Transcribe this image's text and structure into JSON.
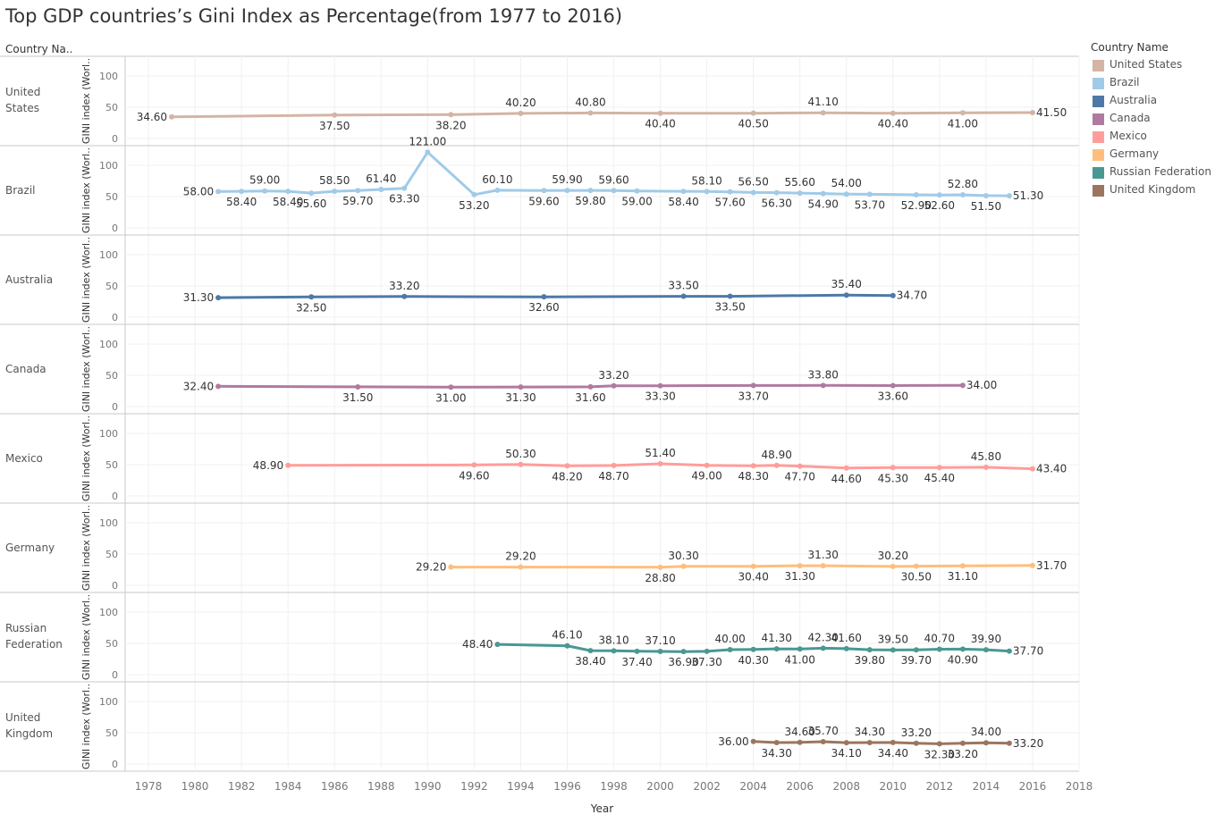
{
  "title": "Top GDP countries’s Gini Index as Percentage(from 1977 to 2016)",
  "chart_data": {
    "type": "line",
    "title": "Top GDP countries’s Gini Index as Percentage(from 1977 to 2016)",
    "row_header": "Country Na..",
    "xlabel": "Year",
    "ylabel": "GINI index (Worl..",
    "xlim": [
      1977,
      2018
    ],
    "x_ticks": [
      1978,
      1980,
      1982,
      1984,
      1986,
      1988,
      1990,
      1992,
      1994,
      1996,
      1998,
      2000,
      2002,
      2004,
      2006,
      2008,
      2010,
      2012,
      2014,
      2016,
      2018
    ],
    "ylim": [
      0,
      120
    ],
    "y_ticks": [
      0,
      50,
      100
    ],
    "grid": true,
    "legend": {
      "title": "Country Name",
      "placement": "right"
    },
    "series": [
      {
        "name": "United States",
        "panel_label": "United States",
        "color": "#d4b4a4",
        "x": [
          1979,
          1986,
          1991,
          1994,
          1997,
          2000,
          2004,
          2007,
          2010,
          2013,
          2016
        ],
        "values": [
          34.6,
          37.5,
          38.2,
          40.2,
          40.8,
          40.4,
          40.5,
          41.1,
          40.4,
          41.0,
          41.5
        ],
        "label_pos": [
          "left",
          "below",
          "below",
          "above",
          "above",
          "below",
          "below",
          "above",
          "below",
          "below",
          "right"
        ]
      },
      {
        "name": "Brazil",
        "panel_label": "Brazil",
        "color": "#a0cbe8",
        "x": [
          1981,
          1982,
          1983,
          1984,
          1985,
          1986,
          1987,
          1988,
          1989,
          1990,
          1992,
          1993,
          1995,
          1996,
          1997,
          1998,
          1999,
          2001,
          2002,
          2003,
          2004,
          2005,
          2006,
          2007,
          2008,
          2009,
          2011,
          2012,
          2013,
          2014,
          2015
        ],
        "values": [
          58.0,
          58.4,
          59.0,
          58.4,
          55.6,
          58.5,
          59.7,
          61.4,
          63.3,
          121.0,
          53.2,
          60.1,
          59.6,
          59.9,
          59.8,
          59.6,
          59.0,
          58.4,
          58.1,
          57.6,
          56.5,
          56.3,
          55.6,
          54.9,
          54.0,
          53.7,
          52.9,
          52.6,
          52.8,
          51.5,
          51.3
        ],
        "label_pos": [
          "left",
          "below",
          "above",
          "below",
          "below",
          "above",
          "below",
          "above",
          "below",
          "above",
          "below",
          "above",
          "below",
          "above",
          "below",
          "above",
          "below",
          "below",
          "above",
          "below",
          "above",
          "below",
          "above",
          "below",
          "above",
          "below",
          "below",
          "below",
          "above",
          "below",
          "right"
        ]
      },
      {
        "name": "Australia",
        "panel_label": "Australia",
        "color": "#4e79a7",
        "x": [
          1981,
          1985,
          1989,
          1995,
          2001,
          2003,
          2008,
          2010
        ],
        "values": [
          31.3,
          32.5,
          33.2,
          32.6,
          33.5,
          33.5,
          35.4,
          34.7
        ],
        "label_pos": [
          "left",
          "below",
          "above",
          "below",
          "above",
          "below",
          "above",
          "right"
        ]
      },
      {
        "name": "Canada",
        "panel_label": "Canada",
        "color": "#b07aa1",
        "x": [
          1981,
          1987,
          1991,
          1994,
          1997,
          1998,
          2000,
          2004,
          2007,
          2010,
          2013
        ],
        "values": [
          32.4,
          31.5,
          31.0,
          31.3,
          31.6,
          33.2,
          33.3,
          33.7,
          33.8,
          33.6,
          34.0
        ],
        "label_pos": [
          "left",
          "below",
          "below",
          "below",
          "below",
          "above",
          "below",
          "below",
          "above",
          "below",
          "right"
        ]
      },
      {
        "name": "Mexico",
        "panel_label": "Mexico",
        "color": "#ff9d9a",
        "x": [
          1984,
          1992,
          1994,
          1996,
          1998,
          2000,
          2002,
          2004,
          2005,
          2006,
          2008,
          2010,
          2012,
          2014,
          2016
        ],
        "values": [
          48.9,
          49.6,
          50.3,
          48.2,
          48.7,
          51.4,
          49.0,
          48.3,
          48.9,
          47.7,
          44.6,
          45.3,
          45.4,
          45.8,
          43.4
        ],
        "label_pos": [
          "left",
          "below",
          "above",
          "below",
          "below",
          "above",
          "below",
          "below",
          "above",
          "below",
          "below",
          "below",
          "below",
          "above",
          "right"
        ]
      },
      {
        "name": "Germany",
        "panel_label": "Germany",
        "color": "#ffbe7d",
        "x": [
          1991,
          1994,
          2000,
          2001,
          2004,
          2006,
          2007,
          2010,
          2011,
          2013,
          2016
        ],
        "values": [
          29.2,
          29.2,
          28.8,
          30.3,
          30.4,
          31.3,
          31.3,
          30.2,
          30.5,
          31.1,
          31.7
        ],
        "label_pos": [
          "left",
          "above",
          "below",
          "above",
          "below",
          "below",
          "above",
          "above",
          "below",
          "below",
          "right"
        ]
      },
      {
        "name": "Russian Federation",
        "panel_label": "Russian Federation",
        "color": "#499894",
        "x": [
          1993,
          1996,
          1997,
          1998,
          1999,
          2000,
          2001,
          2002,
          2003,
          2004,
          2005,
          2006,
          2007,
          2008,
          2009,
          2010,
          2011,
          2012,
          2013,
          2014,
          2015
        ],
        "values": [
          48.4,
          46.1,
          38.4,
          38.1,
          37.4,
          37.1,
          36.9,
          37.3,
          40.0,
          40.3,
          41.3,
          41.0,
          42.3,
          41.6,
          39.8,
          39.5,
          39.7,
          40.7,
          40.9,
          39.9,
          37.7
        ],
        "label_pos": [
          "left",
          "above",
          "below",
          "above",
          "below",
          "above",
          "below",
          "below",
          "above",
          "below",
          "above",
          "below",
          "above",
          "above",
          "below",
          "above",
          "below",
          "above",
          "below",
          "above",
          "right"
        ]
      },
      {
        "name": "United Kingdom",
        "panel_label": "United Kingdom",
        "color": "#9c755f",
        "x": [
          2004,
          2005,
          2006,
          2007,
          2008,
          2009,
          2010,
          2011,
          2012,
          2013,
          2014,
          2015
        ],
        "values": [
          36.0,
          34.3,
          34.6,
          35.7,
          34.1,
          34.3,
          34.4,
          33.2,
          32.3,
          33.2,
          34.0,
          33.2
        ],
        "label_pos": [
          "left",
          "below",
          "above",
          "above",
          "below",
          "above",
          "below",
          "above",
          "below",
          "below",
          "above",
          "right"
        ]
      }
    ]
  }
}
